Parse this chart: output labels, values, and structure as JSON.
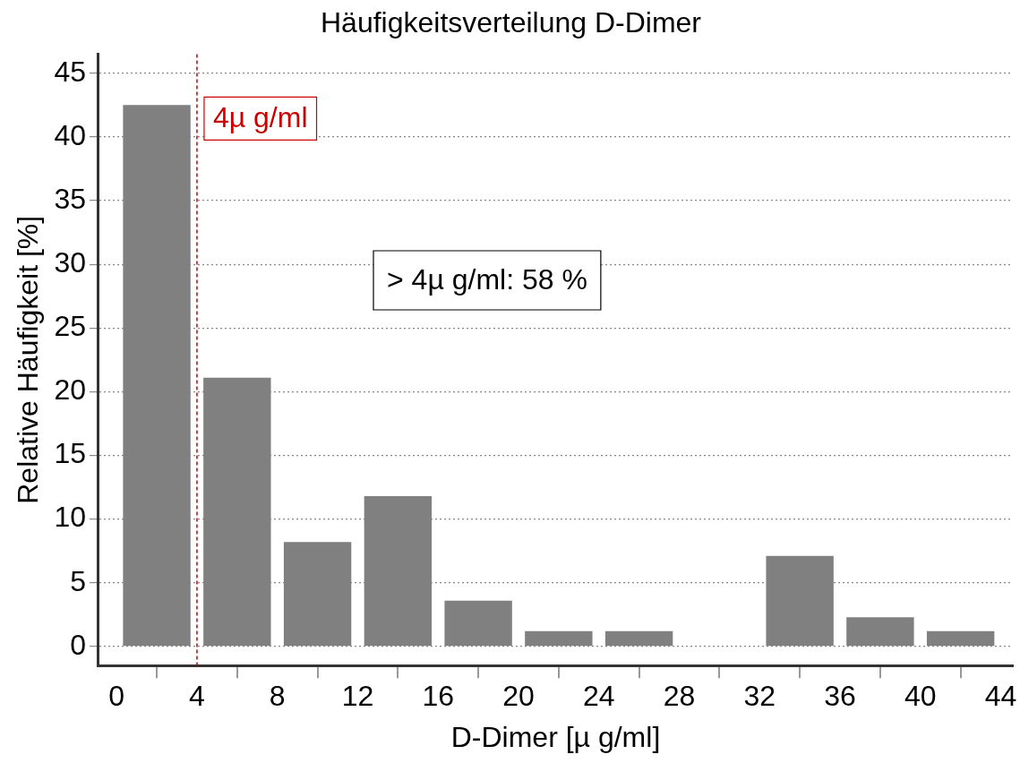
{
  "chart_data": {
    "type": "histogram",
    "title": "Häufigkeitsverteilung D-Dimer",
    "xlabel": "D-Dimer [µ g/ml]",
    "ylabel": "Relative Häufigkeit [%]",
    "bins": [
      0,
      4,
      8,
      12,
      16,
      20,
      24,
      28,
      32,
      36,
      40,
      44
    ],
    "values": [
      42.5,
      21.1,
      8.2,
      11.8,
      3.6,
      1.2,
      1.2,
      0,
      7.1,
      2.3,
      1.2
    ],
    "color": "#808080",
    "xlim": [
      -0.9,
      44.6
    ],
    "xticks": [
      0,
      4,
      8,
      12,
      16,
      20,
      24,
      28,
      32,
      36,
      40,
      44
    ],
    "ylim": [
      -1.5,
      46.5
    ],
    "yticks": [
      0,
      5,
      10,
      15,
      20,
      25,
      30,
      35,
      40,
      45
    ],
    "grid": "y",
    "legend": false,
    "ref_lines": [
      {
        "axis": "x",
        "value": 4,
        "label": "4µ g/ml",
        "color": "#cc0000",
        "line_style": "dashed"
      }
    ],
    "annotations": [
      "> 4µ g/ml: 58 %"
    ]
  }
}
